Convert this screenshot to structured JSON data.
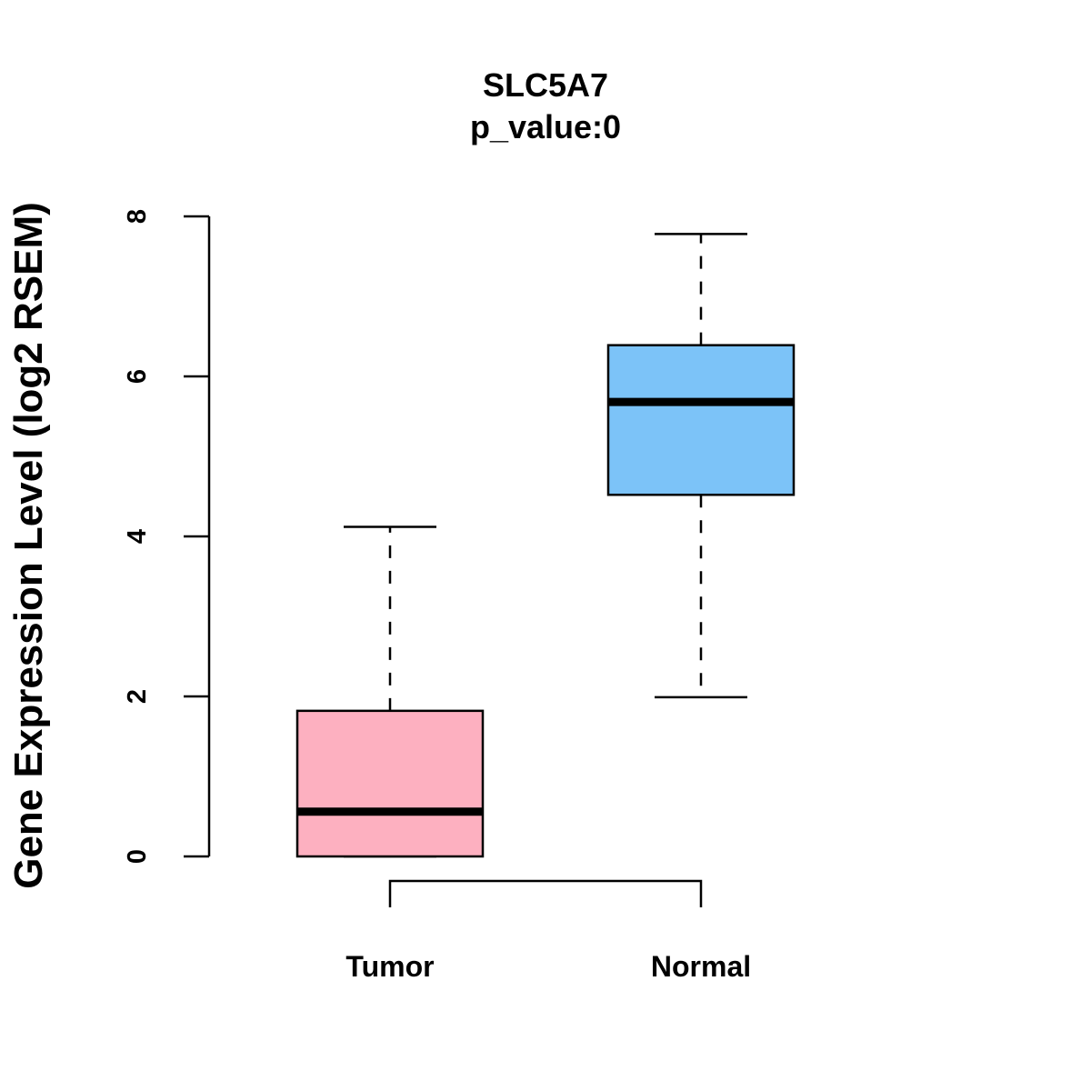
{
  "chart_data": {
    "type": "boxplot",
    "title": "SLC5A7",
    "subtitle": "p_value:0",
    "ylabel": "Gene Expression Level (log2 RSEM)",
    "xlabel": "",
    "ylim": [
      0,
      8
    ],
    "yticks": [
      0,
      2,
      4,
      6,
      8
    ],
    "ytick_labels": [
      "0",
      "2",
      "4",
      "6",
      "8"
    ],
    "grid": false,
    "categories": [
      "Tumor",
      "Normal"
    ],
    "boxes": [
      {
        "name": "Tumor",
        "whisker_low": 0,
        "q1": 0,
        "median": 0.56,
        "q3": 1.82,
        "whisker_high": 4.12,
        "color": "#fdb0c0"
      },
      {
        "name": "Normal",
        "whisker_low": 1.99,
        "q1": 4.52,
        "median": 5.68,
        "q3": 6.39,
        "whisker_high": 7.78,
        "color": "#7cc3f8"
      }
    ],
    "comparison_bracket": [
      "Tumor",
      "Normal"
    ]
  }
}
